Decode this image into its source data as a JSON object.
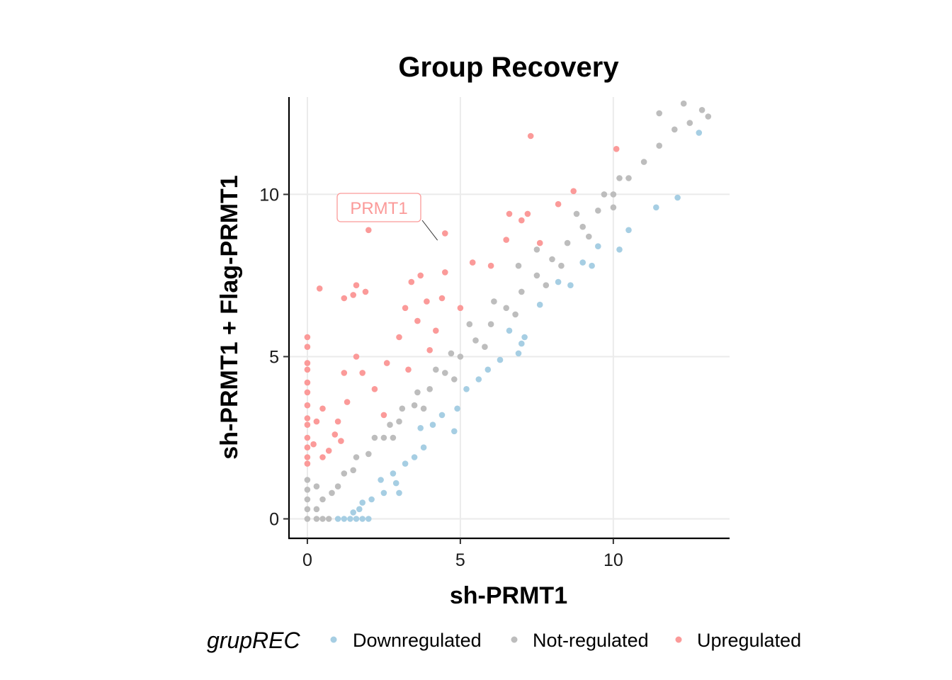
{
  "chart_data": {
    "type": "scatter",
    "title": "Group Recovery",
    "xlabel": "sh-PRMT1",
    "ylabel": "sh-PRMT1 + Flag-PRMT1",
    "xlim": [
      -0.6,
      13.8
    ],
    "ylim": [
      -0.6,
      13.0
    ],
    "x_ticks": [
      0,
      5,
      10
    ],
    "y_ticks": [
      0,
      5,
      10
    ],
    "x_tick_labels": [
      "0",
      "5",
      "10"
    ],
    "y_tick_labels": [
      "0",
      "5",
      "10"
    ],
    "grid": true,
    "legend": {
      "title": "grupREC",
      "position": "bottom",
      "entries": [
        "Downregulated",
        "Not-regulated",
        "Upregulated"
      ]
    },
    "colors": {
      "Downregulated": "#a6cee3",
      "Not-regulated": "#bdbdbd",
      "Upregulated": "#fb9a99"
    },
    "series": [
      {
        "name": "Downregulated",
        "points": [
          [
            1.0,
            0.0
          ],
          [
            1.2,
            0.0
          ],
          [
            1.4,
            0.0
          ],
          [
            1.6,
            0.0
          ],
          [
            1.8,
            0.0
          ],
          [
            2.0,
            0.0
          ],
          [
            1.5,
            0.2
          ],
          [
            1.7,
            0.3
          ],
          [
            2.1,
            0.6
          ],
          [
            1.8,
            0.5
          ],
          [
            2.5,
            0.8
          ],
          [
            2.4,
            1.2
          ],
          [
            2.8,
            1.4
          ],
          [
            3.2,
            1.7
          ],
          [
            3.5,
            1.9
          ],
          [
            3.8,
            2.2
          ],
          [
            3.7,
            2.8
          ],
          [
            4.1,
            2.9
          ],
          [
            4.8,
            2.7
          ],
          [
            4.4,
            3.2
          ],
          [
            4.9,
            3.4
          ],
          [
            5.2,
            4.0
          ],
          [
            5.6,
            4.3
          ],
          [
            6.3,
            4.9
          ],
          [
            7.0,
            5.4
          ],
          [
            7.1,
            5.6
          ],
          [
            6.6,
            5.8
          ],
          [
            7.6,
            6.6
          ],
          [
            8.2,
            7.3
          ],
          [
            9.3,
            7.8
          ],
          [
            9.5,
            8.4
          ],
          [
            10.2,
            8.3
          ],
          [
            10.5,
            8.9
          ],
          [
            11.4,
            9.6
          ],
          [
            12.1,
            9.9
          ],
          [
            12.8,
            11.9
          ],
          [
            3.0,
            0.8
          ],
          [
            2.9,
            1.1
          ],
          [
            5.9,
            4.6
          ],
          [
            6.9,
            5.1
          ],
          [
            8.6,
            7.2
          ],
          [
            9.0,
            7.9
          ]
        ]
      },
      {
        "name": "Not-regulated",
        "points": [
          [
            0.0,
            0.0
          ],
          [
            0.3,
            0.0
          ],
          [
            0.5,
            0.0
          ],
          [
            0.7,
            0.0
          ],
          [
            0.0,
            0.3
          ],
          [
            0.0,
            0.6
          ],
          [
            0.3,
            0.3
          ],
          [
            0.5,
            0.6
          ],
          [
            0.8,
            0.8
          ],
          [
            0.0,
            0.9
          ],
          [
            0.0,
            1.2
          ],
          [
            0.3,
            1.0
          ],
          [
            1.0,
            1.0
          ],
          [
            1.5,
            1.5
          ],
          [
            2.0,
            2.0
          ],
          [
            2.5,
            2.5
          ],
          [
            3.0,
            3.0
          ],
          [
            3.5,
            3.5
          ],
          [
            4.0,
            4.0
          ],
          [
            4.5,
            4.5
          ],
          [
            5.0,
            5.0
          ],
          [
            5.5,
            5.5
          ],
          [
            6.0,
            6.0
          ],
          [
            6.5,
            6.5
          ],
          [
            7.0,
            7.0
          ],
          [
            7.5,
            7.5
          ],
          [
            8.0,
            8.0
          ],
          [
            8.5,
            8.5
          ],
          [
            9.0,
            9.0
          ],
          [
            9.5,
            9.5
          ],
          [
            10.0,
            10.0
          ],
          [
            10.5,
            10.5
          ],
          [
            11.0,
            11.0
          ],
          [
            11.5,
            11.5
          ],
          [
            12.0,
            12.0
          ],
          [
            12.5,
            12.2
          ],
          [
            12.9,
            12.6
          ],
          [
            13.1,
            12.4
          ],
          [
            12.3,
            12.8
          ],
          [
            11.5,
            12.5
          ],
          [
            10.2,
            10.5
          ],
          [
            9.7,
            10.0
          ],
          [
            8.8,
            9.4
          ],
          [
            7.5,
            8.3
          ],
          [
            6.9,
            7.8
          ],
          [
            6.1,
            6.7
          ],
          [
            5.3,
            6.0
          ],
          [
            4.7,
            5.1
          ],
          [
            4.2,
            4.6
          ],
          [
            3.6,
            3.9
          ],
          [
            3.1,
            3.4
          ],
          [
            2.7,
            2.9
          ],
          [
            2.2,
            2.5
          ],
          [
            1.6,
            1.9
          ],
          [
            1.2,
            1.4
          ],
          [
            10.0,
            9.6
          ],
          [
            9.2,
            8.7
          ],
          [
            8.3,
            7.8
          ],
          [
            7.8,
            7.2
          ],
          [
            6.8,
            6.3
          ],
          [
            5.8,
            5.3
          ],
          [
            4.8,
            4.3
          ],
          [
            3.8,
            3.4
          ],
          [
            2.8,
            2.5
          ]
        ]
      },
      {
        "name": "Upregulated",
        "points": [
          [
            0.0,
            5.6
          ],
          [
            0.0,
            5.3
          ],
          [
            0.0,
            4.8
          ],
          [
            0.0,
            4.6
          ],
          [
            0.0,
            4.2
          ],
          [
            0.0,
            3.9
          ],
          [
            0.0,
            3.5
          ],
          [
            0.0,
            3.1
          ],
          [
            0.0,
            2.9
          ],
          [
            0.0,
            2.5
          ],
          [
            0.0,
            2.2
          ],
          [
            0.0,
            1.9
          ],
          [
            0.0,
            1.7
          ],
          [
            0.2,
            2.3
          ],
          [
            0.3,
            3.0
          ],
          [
            0.5,
            1.9
          ],
          [
            0.5,
            3.4
          ],
          [
            0.4,
            7.1
          ],
          [
            0.9,
            2.6
          ],
          [
            1.2,
            4.5
          ],
          [
            1.3,
            3.6
          ],
          [
            1.2,
            6.8
          ],
          [
            1.5,
            6.9
          ],
          [
            1.6,
            5.0
          ],
          [
            1.8,
            4.5
          ],
          [
            1.6,
            7.2
          ],
          [
            1.9,
            7.0
          ],
          [
            2.0,
            8.9
          ],
          [
            2.6,
            4.8
          ],
          [
            3.0,
            5.6
          ],
          [
            3.2,
            6.5
          ],
          [
            3.4,
            7.3
          ],
          [
            3.6,
            6.1
          ],
          [
            3.7,
            7.5
          ],
          [
            3.6,
            9.3
          ],
          [
            3.9,
            6.7
          ],
          [
            4.2,
            5.8
          ],
          [
            4.4,
            6.8
          ],
          [
            4.5,
            7.6
          ],
          [
            4.5,
            8.8
          ],
          [
            5.0,
            6.5
          ],
          [
            5.4,
            7.9
          ],
          [
            6.0,
            7.8
          ],
          [
            6.5,
            8.6
          ],
          [
            6.6,
            9.4
          ],
          [
            7.0,
            9.2
          ],
          [
            7.2,
            9.4
          ],
          [
            7.3,
            11.8
          ],
          [
            7.6,
            8.5
          ],
          [
            8.2,
            9.7
          ],
          [
            8.7,
            10.1
          ],
          [
            10.1,
            11.4
          ],
          [
            1.0,
            3.0
          ],
          [
            2.2,
            4.0
          ],
          [
            2.5,
            3.2
          ],
          [
            0.7,
            2.1
          ],
          [
            1.1,
            2.4
          ],
          [
            3.3,
            4.6
          ],
          [
            4.0,
            5.2
          ]
        ]
      }
    ],
    "annotations": [
      {
        "label": "PRMT1",
        "x": 4.3,
        "y": 8.5
      }
    ]
  }
}
